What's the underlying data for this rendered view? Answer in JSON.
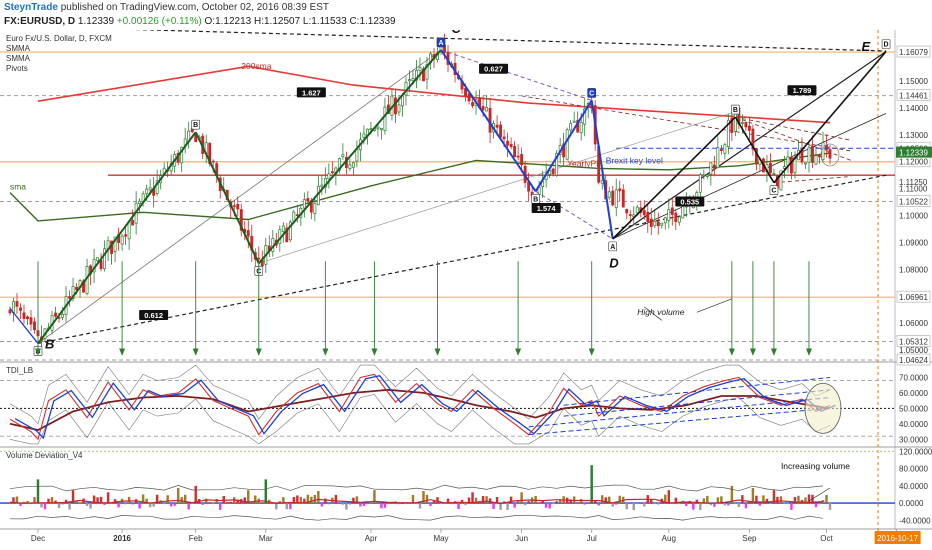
{
  "header": {
    "brand": "SteynTrade",
    "published": "published on TradingView.com, October 02, 2016 08:39 EST",
    "symbol": "FX:EURUSD, D",
    "price": "1.12339",
    "change": "+0.00126 (+0.11%)",
    "ohlc": "O:1.12213 H:1.12507 L:1.11533 C:1.12339"
  },
  "colors": {
    "bull": "#2e7d32",
    "bear": "#c62828",
    "sma200": "#e53935",
    "smma": "#3a6b1f",
    "pattern": "#1e3fd0",
    "rsi": "#d32f2f",
    "signal": "#7b1f1f",
    "volline": "#1e3fd0"
  },
  "legend": [
    "Euro Fx/U.S. Dollar, D, FXCM",
    "SMMA",
    "SMMA",
    "Pivots"
  ],
  "chart_data": [
    {
      "type": "candlestick",
      "title": "Euro Fx/U.S. Dollar, D, FXCM",
      "ylim": [
        1.0455,
        1.169
      ],
      "x_categories": [
        "Dec",
        "2016",
        "Feb",
        "Mar",
        "Apr",
        "May",
        "Jun",
        "Jul",
        "Aug",
        "Sep",
        "Oct",
        "2016-10-17"
      ],
      "x_day_index": [
        0,
        24,
        45,
        65,
        95,
        115,
        138,
        158,
        180,
        203,
        225,
        245
      ],
      "x_range_days": [
        -8,
        248
      ],
      "price_tick_labels": [
        "1.16079",
        "1.15000",
        "1.14461",
        "1.14000",
        "1.13000",
        "1.12500",
        "1.12000",
        "1.11250",
        "1.11000",
        "1.10522",
        "1.10000",
        "1.09000",
        "1.08000",
        "1.07000",
        "1.06961",
        "1.06000",
        "1.05312",
        "1.05000",
        "1.04624"
      ],
      "last_price": "1.12339",
      "current_price_labels": [
        "1.12339",
        "1.11500"
      ],
      "horizontal_levels": [
        {
          "price": 1.16079,
          "label": "1.16079",
          "style": "solid-orange"
        },
        {
          "price": 1.14461,
          "label": "1.14461",
          "style": "dashed-gray"
        },
        {
          "price": 1.125,
          "label": "1.12500",
          "style": "dashed-blue"
        },
        {
          "price": 1.12,
          "label": "1.12000",
          "style": "solid-orange"
        },
        {
          "price": 1.115,
          "label": "1.11500",
          "style": "solid-red"
        },
        {
          "price": 1.10522,
          "label": "1.10522",
          "style": "dashed-gray"
        },
        {
          "price": 1.06961,
          "label": "1.06961",
          "style": "solid-orange"
        },
        {
          "price": 1.05312,
          "label": "1.05312",
          "style": "dashed-gray"
        },
        {
          "price": 1.04624,
          "label": "1.04624",
          "style": "dashed-gray"
        }
      ],
      "anchors": [
        {
          "day": 0,
          "price": 1.0524
        },
        {
          "day": 45,
          "price": 1.131
        },
        {
          "day": 63,
          "price": 1.0822
        },
        {
          "day": 115,
          "price": 1.1616
        },
        {
          "day": 142,
          "price": 1.109
        },
        {
          "day": 158,
          "price": 1.1428
        },
        {
          "day": 160,
          "price": 1.111
        },
        {
          "day": 164,
          "price": 1.1076
        },
        {
          "day": 178,
          "price": 1.0955
        },
        {
          "day": 190,
          "price": 1.1134
        },
        {
          "day": 199,
          "price": 1.1366
        },
        {
          "day": 210,
          "price": 1.1122
        },
        {
          "day": 218,
          "price": 1.1238
        },
        {
          "day": 226,
          "price": 1.1234
        }
      ],
      "sma200": [
        {
          "day": 0,
          "price": 1.1425
        },
        {
          "day": 60,
          "price": 1.1555
        },
        {
          "day": 90,
          "price": 1.1485
        },
        {
          "day": 140,
          "price": 1.1418
        },
        {
          "day": 226,
          "price": 1.1345
        }
      ],
      "smma": [
        {
          "day": -8,
          "price": 1.1085
        },
        {
          "day": 0,
          "price": 1.098
        },
        {
          "day": 30,
          "price": 1.1012
        },
        {
          "day": 60,
          "price": 1.0985
        },
        {
          "day": 95,
          "price": 1.111
        },
        {
          "day": 125,
          "price": 1.1205
        },
        {
          "day": 160,
          "price": 1.1175
        },
        {
          "day": 180,
          "price": 1.117
        },
        {
          "day": 200,
          "price": 1.1185
        },
        {
          "day": 226,
          "price": 1.1232
        }
      ],
      "pattern_points": [
        {
          "label": "B",
          "day": 0,
          "price": 1.0524
        },
        {
          "label": "B",
          "day": 45,
          "price": 1.131
        },
        {
          "label": "C",
          "day": 63,
          "price": 1.0822
        },
        {
          "label": "A",
          "day": 115,
          "price": 1.1616
        },
        {
          "label": "B",
          "day": 142,
          "price": 1.109
        },
        {
          "label": "C",
          "day": 158,
          "price": 1.1428
        },
        {
          "label": "A",
          "day": 164,
          "price": 1.0913
        },
        {
          "label": "B",
          "day": 199,
          "price": 1.1366
        },
        {
          "label": "C",
          "day": 210,
          "price": 1.1122
        },
        {
          "label": "D",
          "day": 242,
          "price": 1.161
        }
      ],
      "ratio_labels": [
        {
          "text": "1.627",
          "day": 78,
          "price": 1.1458
        },
        {
          "text": "0.627",
          "day": 130,
          "price": 1.1546
        },
        {
          "text": "1.574",
          "day": 145,
          "price": 1.1028
        },
        {
          "text": "0.535",
          "day": 186,
          "price": 1.1052
        },
        {
          "text": "1.789",
          "day": 218,
          "price": 1.1466
        },
        {
          "text": "0.612",
          "day": 33,
          "price": 1.063
        }
      ],
      "big_labels": [
        {
          "text": "B",
          "day": 2,
          "price": 1.0505
        },
        {
          "text": "C",
          "day": 118,
          "price": 1.1678
        },
        {
          "text": "D",
          "day": 163,
          "price": 1.0807
        },
        {
          "text": "E",
          "day": 235,
          "price": 1.1612
        }
      ],
      "annotations": [
        {
          "text": "200sma",
          "day": 58,
          "price": 1.1545,
          "color": "#c62828"
        },
        {
          "text": "YearlyPP",
          "day": 151,
          "price": 1.1182,
          "color": "#c62828"
        },
        {
          "text": "Brexit key level",
          "day": 162,
          "price": 1.1193,
          "color": "#1e3fd0"
        },
        {
          "text": "sma",
          "day": -8,
          "price": 1.1096,
          "color": "#3a6b1f"
        },
        {
          "text": "High volume",
          "day": 171,
          "price": 1.063,
          "color": "#222222"
        }
      ],
      "high_volume_arrows_day": [
        0,
        24,
        45,
        63,
        82,
        96,
        114,
        137,
        158,
        198,
        204,
        210,
        220
      ]
    },
    {
      "type": "line",
      "title": "TDI_LB",
      "ylim": [
        25,
        80
      ],
      "tick_labels": [
        "70.0000",
        "60.0000",
        "50.0000",
        "40.0000",
        "30.0000"
      ],
      "series": [
        {
          "name": "",
          "day": [
            -8,
            -2,
            0,
            3,
            8,
            14,
            20,
            26,
            30,
            34,
            40,
            45,
            50,
            55,
            60,
            63,
            68,
            74,
            80,
            86,
            92,
            96,
            102,
            108,
            114,
            118,
            124,
            130,
            136,
            140,
            146,
            150,
            155,
            158,
            160,
            166,
            172,
            178,
            184,
            190,
            196,
            200,
            206,
            212,
            218,
            222,
            226
          ],
          "values": [
            43,
            35,
            30,
            55,
            62,
            44,
            67,
            49,
            62,
            58,
            60,
            69,
            55,
            50,
            45,
            33,
            48,
            60,
            66,
            48,
            70,
            72,
            54,
            66,
            53,
            48,
            62,
            50,
            40,
            33,
            48,
            63,
            52,
            55,
            45,
            58,
            52,
            48,
            58,
            64,
            68,
            70,
            57,
            52,
            56,
            48,
            52
          ]
        },
        {
          "name": "",
          "day": [
            -8,
            0,
            10,
            20,
            30,
            40,
            50,
            60,
            70,
            80,
            90,
            100,
            110,
            118,
            125,
            135,
            142,
            150,
            158,
            166,
            175,
            185,
            195,
            205,
            215,
            226
          ],
          "values": [
            40,
            36,
            48,
            54,
            57,
            58,
            56,
            48,
            52,
            56,
            60,
            62,
            60,
            56,
            52,
            48,
            44,
            50,
            52,
            50,
            49,
            52,
            58,
            58,
            54,
            50
          ]
        }
      ],
      "dashed_levels": [
        68,
        50,
        32
      ]
    },
    {
      "type": "bar",
      "title": "Volume Deviation_V4",
      "ylim": [
        -60,
        130
      ],
      "tick_labels": [
        "120.0000",
        "80.0000",
        "40.0000",
        "0.0000",
        "-40.0000"
      ],
      "bar_values_seed_days": [
        0,
        10,
        20,
        30,
        40,
        45,
        60,
        65,
        80,
        96,
        110,
        124,
        138,
        158,
        180,
        198,
        204,
        210,
        220
      ],
      "bar_values": [
        55,
        30,
        25,
        20,
        35,
        40,
        30,
        55,
        28,
        30,
        28,
        25,
        25,
        88,
        30,
        40,
        35,
        30,
        20
      ],
      "annotation": "Increasing volume"
    }
  ]
}
